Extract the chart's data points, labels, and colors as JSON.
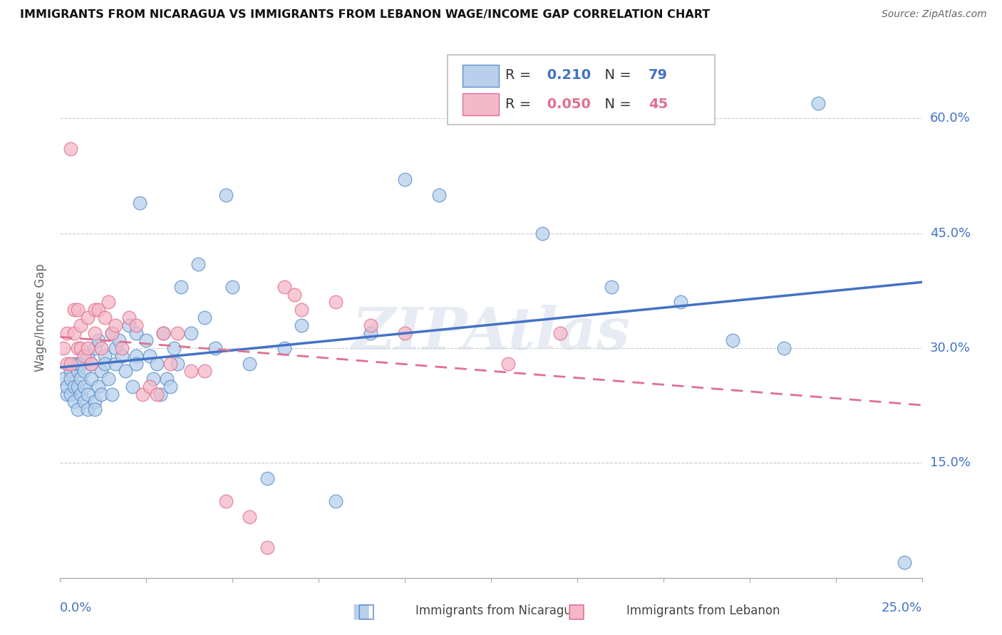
{
  "title": "IMMIGRANTS FROM NICARAGUA VS IMMIGRANTS FROM LEBANON WAGE/INCOME GAP CORRELATION CHART",
  "source": "Source: ZipAtlas.com",
  "ylabel": "Wage/Income Gap",
  "ytick_vals": [
    0.15,
    0.3,
    0.45,
    0.6
  ],
  "ytick_labels": [
    "15.0%",
    "30.0%",
    "45.0%",
    "60.0%"
  ],
  "xmin": 0.0,
  "xmax": 0.25,
  "ymin": 0.0,
  "ymax": 0.68,
  "r_nicaragua": 0.21,
  "n_nicaragua": 79,
  "r_lebanon": 0.05,
  "n_lebanon": 45,
  "color_nicaragua_fill": "#b8d0eb",
  "color_nicaragua_edge": "#5b8fc9",
  "color_lebanon_fill": "#f5b8c8",
  "color_lebanon_edge": "#e07090",
  "color_line_nicaragua": "#4472c4",
  "color_line_lebanon": "#e07090",
  "watermark": "ZIPAtlas",
  "nicaragua_x": [
    0.001,
    0.002,
    0.002,
    0.003,
    0.003,
    0.003,
    0.004,
    0.004,
    0.004,
    0.005,
    0.005,
    0.005,
    0.005,
    0.006,
    0.006,
    0.006,
    0.007,
    0.007,
    0.007,
    0.008,
    0.008,
    0.008,
    0.009,
    0.009,
    0.01,
    0.01,
    0.01,
    0.011,
    0.011,
    0.012,
    0.012,
    0.013,
    0.013,
    0.014,
    0.015,
    0.015,
    0.016,
    0.016,
    0.017,
    0.018,
    0.019,
    0.02,
    0.021,
    0.022,
    0.022,
    0.022,
    0.023,
    0.025,
    0.026,
    0.027,
    0.028,
    0.029,
    0.03,
    0.031,
    0.032,
    0.033,
    0.034,
    0.035,
    0.04,
    0.042,
    0.045,
    0.05,
    0.055,
    0.065,
    0.08,
    0.09,
    0.1,
    0.11,
    0.14,
    0.16,
    0.18,
    0.195,
    0.21,
    0.22,
    0.245,
    0.06,
    0.038,
    0.048,
    0.07
  ],
  "nicaragua_y": [
    0.26,
    0.24,
    0.25,
    0.27,
    0.26,
    0.24,
    0.28,
    0.23,
    0.25,
    0.27,
    0.22,
    0.28,
    0.25,
    0.24,
    0.26,
    0.28,
    0.23,
    0.27,
    0.25,
    0.22,
    0.29,
    0.24,
    0.26,
    0.28,
    0.23,
    0.3,
    0.22,
    0.31,
    0.25,
    0.27,
    0.24,
    0.29,
    0.28,
    0.26,
    0.32,
    0.24,
    0.3,
    0.28,
    0.31,
    0.29,
    0.27,
    0.33,
    0.25,
    0.29,
    0.32,
    0.28,
    0.49,
    0.31,
    0.29,
    0.26,
    0.28,
    0.24,
    0.32,
    0.26,
    0.25,
    0.3,
    0.28,
    0.38,
    0.41,
    0.34,
    0.3,
    0.38,
    0.28,
    0.3,
    0.1,
    0.32,
    0.52,
    0.5,
    0.45,
    0.38,
    0.36,
    0.31,
    0.3,
    0.62,
    0.02,
    0.13,
    0.32,
    0.5,
    0.33
  ],
  "lebanon_x": [
    0.001,
    0.002,
    0.002,
    0.003,
    0.003,
    0.004,
    0.004,
    0.005,
    0.005,
    0.006,
    0.006,
    0.007,
    0.008,
    0.008,
    0.009,
    0.01,
    0.01,
    0.011,
    0.012,
    0.013,
    0.014,
    0.015,
    0.016,
    0.018,
    0.02,
    0.022,
    0.024,
    0.026,
    0.028,
    0.03,
    0.032,
    0.034,
    0.038,
    0.042,
    0.048,
    0.055,
    0.06,
    0.065,
    0.068,
    0.07,
    0.08,
    0.09,
    0.1,
    0.13,
    0.145
  ],
  "lebanon_y": [
    0.3,
    0.32,
    0.28,
    0.56,
    0.28,
    0.35,
    0.32,
    0.3,
    0.35,
    0.33,
    0.3,
    0.29,
    0.34,
    0.3,
    0.28,
    0.35,
    0.32,
    0.35,
    0.3,
    0.34,
    0.36,
    0.32,
    0.33,
    0.3,
    0.34,
    0.33,
    0.24,
    0.25,
    0.24,
    0.32,
    0.28,
    0.32,
    0.27,
    0.27,
    0.1,
    0.08,
    0.04,
    0.38,
    0.37,
    0.35,
    0.36,
    0.33,
    0.32,
    0.28,
    0.32
  ]
}
